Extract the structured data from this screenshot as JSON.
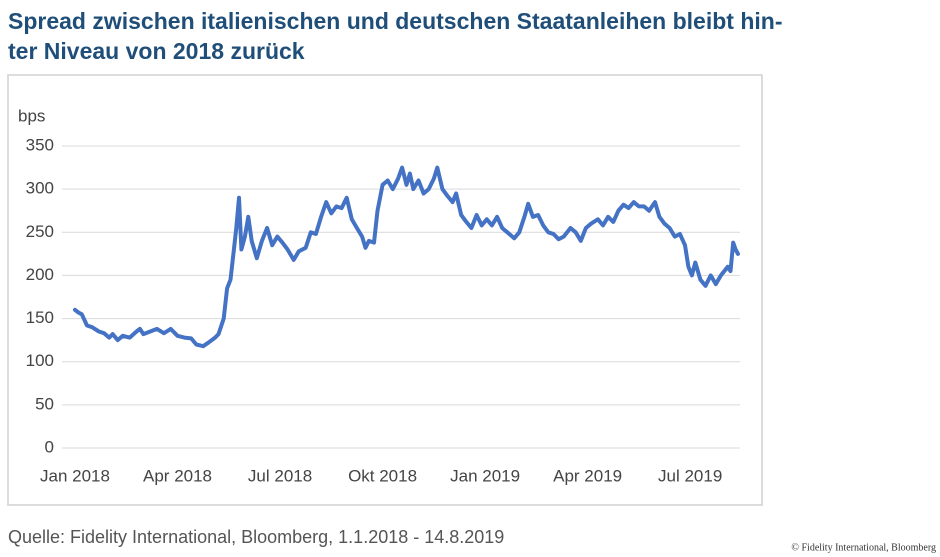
{
  "chart_data": {
    "type": "line",
    "title": [
      "Spread zwischen italienischen und deutschen Staatanleihen bleibt hin-",
      "ter Niveau von 2018 zurück"
    ],
    "y_label": "bps",
    "source": "Quelle: Fidelity International, Bloomberg, 1.1.2018 - 14.8.2019",
    "copyright": "© Fidelity International, Bloomberg",
    "xlim": [
      0,
      19.4
    ],
    "xticks": [
      {
        "value": 0,
        "label": "Jan 2018"
      },
      {
        "value": 3,
        "label": "Apr 2018"
      },
      {
        "value": 6,
        "label": "Jul 2018"
      },
      {
        "value": 9,
        "label": "Okt 2018"
      },
      {
        "value": 12,
        "label": "Jan 2019"
      },
      {
        "value": 15,
        "label": "Apr 2019"
      },
      {
        "value": 18,
        "label": "Jul 2019"
      }
    ],
    "ylim": [
      0,
      350
    ],
    "yticks": [
      0,
      50,
      100,
      150,
      200,
      250,
      300,
      350
    ],
    "grid": true,
    "series": [
      {
        "color": "#4472c4",
        "x": [
          0,
          0.1,
          0.2,
          0.35,
          0.5,
          0.7,
          0.85,
          1.0,
          1.1,
          1.25,
          1.4,
          1.6,
          1.8,
          1.9,
          2.0,
          2.2,
          2.4,
          2.6,
          2.8,
          3.0,
          3.2,
          3.4,
          3.55,
          3.75,
          3.9,
          4.1,
          4.2,
          4.35,
          4.45,
          4.55,
          4.65,
          4.72,
          4.8,
          4.87,
          4.97,
          5.07,
          5.17,
          5.32,
          5.47,
          5.62,
          5.77,
          5.92,
          6.07,
          6.22,
          6.4,
          6.55,
          6.75,
          6.9,
          7.05,
          7.2,
          7.35,
          7.5,
          7.65,
          7.8,
          7.95,
          8.1,
          8.25,
          8.4,
          8.5,
          8.6,
          8.75,
          8.85,
          9.0,
          9.15,
          9.3,
          9.45,
          9.57,
          9.7,
          9.8,
          9.9,
          10.05,
          10.2,
          10.35,
          10.5,
          10.6,
          10.75,
          10.9,
          11.05,
          11.15,
          11.3,
          11.45,
          11.6,
          11.75,
          11.9,
          12.05,
          12.2,
          12.35,
          12.5,
          12.65,
          12.85,
          13.0,
          13.15,
          13.26,
          13.4,
          13.55,
          13.7,
          13.85,
          14.0,
          14.15,
          14.3,
          14.5,
          14.65,
          14.8,
          14.95,
          15.1,
          15.3,
          15.45,
          15.6,
          15.75,
          15.9,
          16.05,
          16.2,
          16.35,
          16.5,
          16.65,
          16.8,
          16.97,
          17.1,
          17.25,
          17.4,
          17.55,
          17.7,
          17.85,
          17.95,
          18.05,
          18.15,
          18.3,
          18.45,
          18.6,
          18.75,
          18.9,
          19.0,
          19.1,
          19.18,
          19.26,
          19.33,
          19.4
        ],
        "values": [
          160,
          157,
          155,
          142,
          140,
          135,
          133,
          128,
          132,
          125,
          130,
          128,
          135,
          138,
          132,
          135,
          138,
          133,
          138,
          130,
          128,
          127,
          120,
          118,
          122,
          128,
          132,
          150,
          185,
          195,
          230,
          255,
          290,
          230,
          245,
          268,
          240,
          220,
          240,
          255,
          235,
          245,
          238,
          230,
          218,
          228,
          232,
          250,
          248,
          268,
          285,
          272,
          280,
          278,
          290,
          265,
          255,
          245,
          232,
          240,
          238,
          275,
          305,
          310,
          300,
          312,
          325,
          305,
          318,
          300,
          310,
          295,
          300,
          312,
          325,
          300,
          292,
          285,
          295,
          270,
          262,
          255,
          270,
          258,
          265,
          258,
          268,
          255,
          250,
          243,
          250,
          268,
          283,
          268,
          270,
          258,
          250,
          248,
          242,
          245,
          255,
          250,
          240,
          255,
          260,
          265,
          258,
          268,
          262,
          275,
          282,
          278,
          285,
          280,
          280,
          275,
          285,
          268,
          260,
          255,
          245,
          248,
          235,
          210,
          200,
          215,
          195,
          188,
          200,
          190,
          200,
          205,
          210,
          205,
          238,
          230,
          225
        ]
      }
    ]
  }
}
